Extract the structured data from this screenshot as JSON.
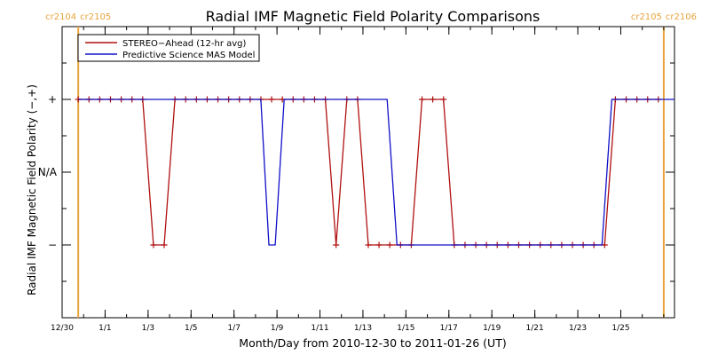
{
  "chart_data": {
    "type": "line",
    "title": "Radial IMF Magnetic Field Polarity Comparisons",
    "xlabel": "Month/Day from 2010-12-30 to 2011-01-26 (UT)",
    "ylabel": "Radial IMF Magnetic Field Polarity (−,+)",
    "x_unit": "date",
    "xlim": [
      "2010-12-30",
      "2011-01-27T12:00"
    ],
    "ylim": [
      -2,
      2
    ],
    "x_ticks": [
      {
        "label": "12/30",
        "x": "2010-12-30"
      },
      {
        "label": "1/1",
        "x": "2011-01-01"
      },
      {
        "label": "1/3",
        "x": "2011-01-03"
      },
      {
        "label": "1/5",
        "x": "2011-01-05"
      },
      {
        "label": "1/7",
        "x": "2011-01-07"
      },
      {
        "label": "1/9",
        "x": "2011-01-09"
      },
      {
        "label": "1/11",
        "x": "2011-01-11"
      },
      {
        "label": "1/13",
        "x": "2011-01-13"
      },
      {
        "label": "1/15",
        "x": "2011-01-15"
      },
      {
        "label": "1/17",
        "x": "2011-01-17"
      },
      {
        "label": "1/19",
        "x": "2011-01-19"
      },
      {
        "label": "1/21",
        "x": "2011-01-21"
      },
      {
        "label": "1/23",
        "x": "2011-01-23"
      },
      {
        "label": "1/25",
        "x": "2011-01-25"
      }
    ],
    "y_ticks": [
      {
        "label": "+",
        "y": 1
      },
      {
        "label": "N/A",
        "y": 0
      },
      {
        "label": "−",
        "y": -1
      }
    ],
    "carrington_markers": [
      {
        "x": "2010-12-30T18:00",
        "label_left": "cr2104",
        "label_right": "cr2105",
        "color": "#e8a33c"
      },
      {
        "x": "2011-01-27T00:00",
        "label_left": "cr2105",
        "label_right": "cr2106",
        "color": "#e8a33c"
      }
    ],
    "legend": {
      "position": "top-left",
      "entries": [
        {
          "name": "STEREO−Ahead (12-hr avg)",
          "color": "#b01010"
        },
        {
          "name": "Predictive Science MAS Model",
          "color": "#1010c8"
        }
      ]
    },
    "series": [
      {
        "name": "STEREO−Ahead (12-hr avg)",
        "color": "#b01010",
        "marker": "plus",
        "points": [
          [
            "2010-12-30T18:00",
            1
          ],
          [
            "2010-12-31T06:00",
            1
          ],
          [
            "2010-12-31T18:00",
            1
          ],
          [
            "2011-01-01T06:00",
            1
          ],
          [
            "2011-01-01T18:00",
            1
          ],
          [
            "2011-01-02T06:00",
            1
          ],
          [
            "2011-01-02T18:00",
            1
          ],
          [
            "2011-01-03T06:00",
            -1
          ],
          [
            "2011-01-03T18:00",
            -1
          ],
          [
            "2011-01-04T06:00",
            1
          ],
          [
            "2011-01-04T18:00",
            1
          ],
          [
            "2011-01-05T06:00",
            1
          ],
          [
            "2011-01-05T18:00",
            1
          ],
          [
            "2011-01-06T06:00",
            1
          ],
          [
            "2011-01-06T18:00",
            1
          ],
          [
            "2011-01-07T06:00",
            1
          ],
          [
            "2011-01-07T18:00",
            1
          ],
          [
            "2011-01-08T06:00",
            1
          ],
          [
            "2011-01-08T18:00",
            1
          ],
          [
            "2011-01-09T06:00",
            1
          ],
          [
            "2011-01-09T18:00",
            1
          ],
          [
            "2011-01-10T06:00",
            1
          ],
          [
            "2011-01-10T18:00",
            1
          ],
          [
            "2011-01-11T06:00",
            1
          ],
          [
            "2011-01-11T18:00",
            -1
          ],
          [
            "2011-01-12T06:00",
            1
          ],
          [
            "2011-01-12T18:00",
            1
          ],
          [
            "2011-01-13T06:00",
            -1
          ],
          [
            "2011-01-13T18:00",
            -1
          ],
          [
            "2011-01-14T06:00",
            -1
          ],
          [
            "2011-01-14T18:00",
            -1
          ],
          [
            "2011-01-15T06:00",
            -1
          ],
          [
            "2011-01-15T18:00",
            1
          ],
          [
            "2011-01-16T06:00",
            1
          ],
          [
            "2011-01-16T18:00",
            1
          ],
          [
            "2011-01-17T06:00",
            -1
          ],
          [
            "2011-01-17T18:00",
            -1
          ],
          [
            "2011-01-18T06:00",
            -1
          ],
          [
            "2011-01-18T18:00",
            -1
          ],
          [
            "2011-01-19T06:00",
            -1
          ],
          [
            "2011-01-19T18:00",
            -1
          ],
          [
            "2011-01-20T06:00",
            -1
          ],
          [
            "2011-01-20T18:00",
            -1
          ],
          [
            "2011-01-21T06:00",
            -1
          ],
          [
            "2011-01-21T18:00",
            -1
          ],
          [
            "2011-01-22T06:00",
            -1
          ],
          [
            "2011-01-22T18:00",
            -1
          ],
          [
            "2011-01-23T06:00",
            -1
          ],
          [
            "2011-01-23T18:00",
            -1
          ],
          [
            "2011-01-24T06:00",
            -1
          ],
          [
            "2011-01-24T18:00",
            1
          ],
          [
            "2011-01-25T06:00",
            1
          ],
          [
            "2011-01-25T18:00",
            1
          ],
          [
            "2011-01-26T06:00",
            1
          ],
          [
            "2011-01-26T18:00",
            1
          ]
        ]
      },
      {
        "name": "Predictive Science MAS Model",
        "color": "#1010c8",
        "marker": "none",
        "points": [
          [
            "2010-12-30T18:00",
            1
          ],
          [
            "2011-01-08T06:00",
            1
          ],
          [
            "2011-01-08T15:00",
            -1
          ],
          [
            "2011-01-08T22:00",
            -1
          ],
          [
            "2011-01-09T08:00",
            1
          ],
          [
            "2011-01-14T03:00",
            1
          ],
          [
            "2011-01-14T14:00",
            -1
          ],
          [
            "2011-01-24T03:00",
            -1
          ],
          [
            "2011-01-24T14:00",
            1
          ],
          [
            "2011-01-27T12:00",
            1
          ]
        ]
      }
    ]
  }
}
